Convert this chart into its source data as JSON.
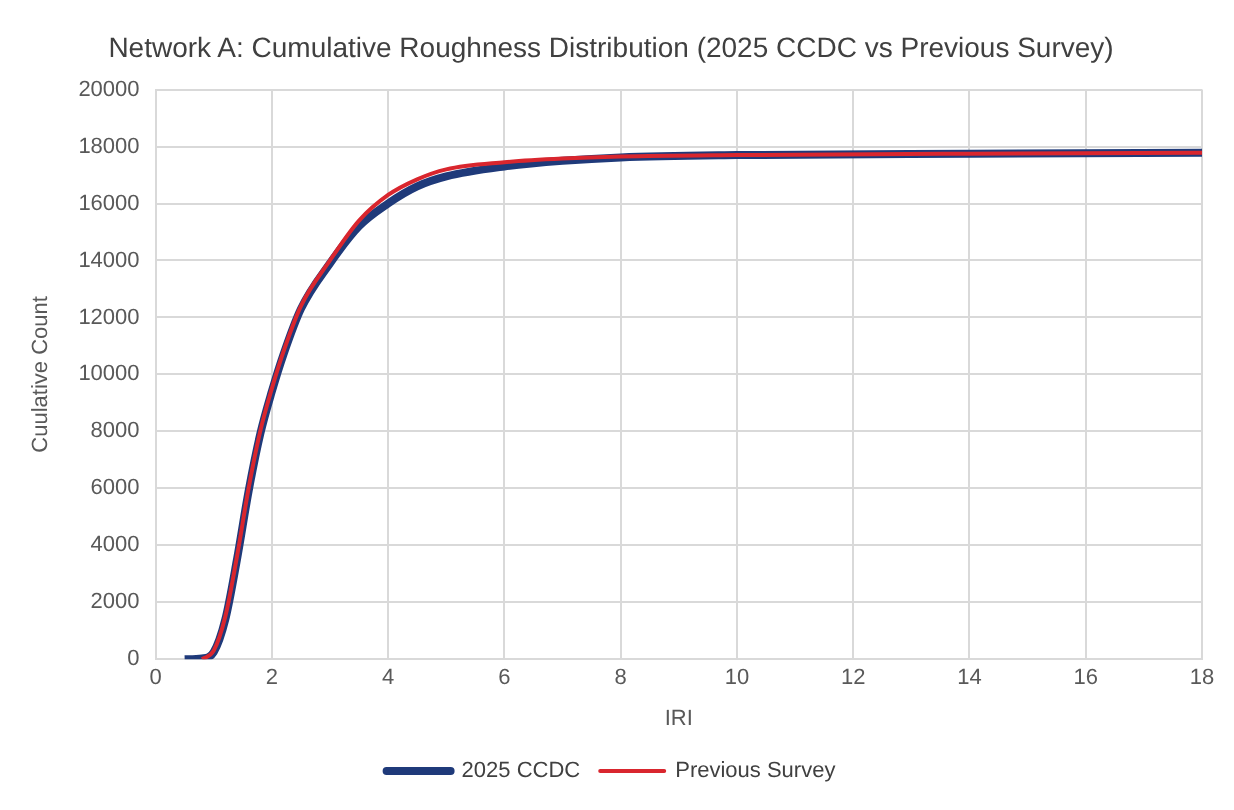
{
  "chart_data": {
    "type": "line",
    "title": "Network A: Cumulative Roughness Distribution (2025 CCDC vs Previous Survey)",
    "xlabel": "IRI",
    "ylabel": "Cuulative Count",
    "xlim": [
      0,
      18
    ],
    "xticks": [
      0,
      2,
      4,
      6,
      8,
      10,
      12,
      14,
      16,
      18
    ],
    "ylim": [
      0,
      20000
    ],
    "yticks": [
      0,
      2000,
      4000,
      6000,
      8000,
      10000,
      12000,
      14000,
      16000,
      18000,
      20000
    ],
    "grid": true,
    "legend": "bottom",
    "marker": "none",
    "line_style": "solid",
    "series": [
      {
        "name": "2025 CCDC",
        "color": "#1f3a7a",
        "x": [
          0.5,
          0.8,
          1.0,
          1.2,
          1.4,
          1.6,
          1.8,
          2.0,
          2.2,
          2.5,
          3.0,
          3.5,
          4.0,
          4.5,
          5.0,
          6.0,
          7.0,
          8.0,
          10.0,
          14.0,
          18.0
        ],
        "values": [
          0,
          30,
          250,
          1400,
          3500,
          5900,
          7900,
          9400,
          10700,
          12300,
          13900,
          15200,
          16000,
          16600,
          16950,
          17300,
          17500,
          17620,
          17700,
          17750,
          17780
        ]
      },
      {
        "name": "Previous Survey",
        "color": "#d9262e",
        "x": [
          0.8,
          1.0,
          1.2,
          1.4,
          1.6,
          1.8,
          2.0,
          2.2,
          2.5,
          3.0,
          3.5,
          4.0,
          4.5,
          5.0,
          6.0,
          7.0,
          8.0,
          10.0,
          14.0,
          18.0
        ],
        "values": [
          0,
          300,
          1500,
          3600,
          6000,
          8000,
          9500,
          10800,
          12400,
          14000,
          15400,
          16300,
          16850,
          17200,
          17450,
          17580,
          17650,
          17700,
          17750,
          17780
        ]
      }
    ]
  }
}
